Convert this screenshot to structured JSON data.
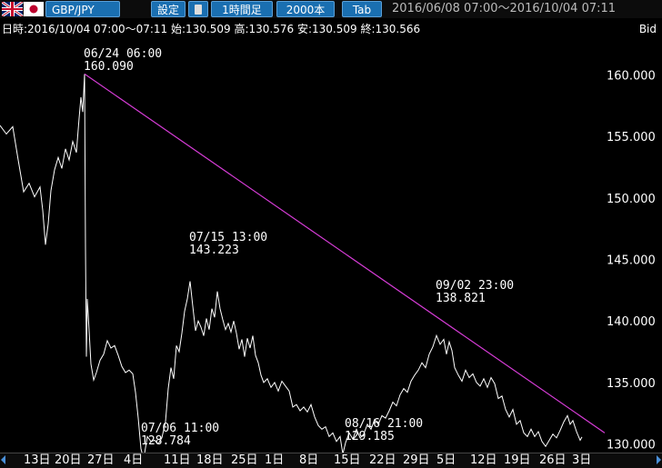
{
  "toolbar": {
    "pair": "GBP/JPY",
    "settings_label": "設定",
    "timeframe_label": "1時間足",
    "bars_label": "2000本",
    "tab_label": "Tab",
    "range_text": "2016/06/08 07:00～2016/10/04 07:11"
  },
  "info": {
    "ohlc_text": "日時:2016/10/04 07:00～07:11 始:130.509 高:130.576 安:130.509 終:130.566",
    "bid_label": "Bid"
  },
  "chart_data": {
    "type": "line",
    "ylim": [
      129.3,
      163.0
    ],
    "y_ticks": [
      "160.000",
      "155.000",
      "150.000",
      "145.000",
      "140.000",
      "135.000",
      "130.000"
    ],
    "x_ticks": [
      "13日",
      "20日",
      "27日",
      "4日",
      "11日",
      "18日",
      "25日",
      "1日",
      "8日",
      "15日",
      "22日",
      "29日",
      "5日",
      "12日",
      "19日",
      "26日",
      "3日"
    ],
    "series": [
      {
        "values": [
          [
            0,
            155.9
          ],
          [
            7,
            155.2
          ],
          [
            14,
            155.8
          ],
          [
            20,
            153.1
          ],
          [
            26,
            150.5
          ],
          [
            32,
            151.2
          ],
          [
            38,
            150.1
          ],
          [
            44,
            150.9
          ],
          [
            47,
            149.0
          ],
          [
            50,
            146.2
          ],
          [
            53,
            147.9
          ],
          [
            56,
            150.6
          ],
          [
            60,
            152.3
          ],
          [
            64,
            153.3
          ],
          [
            68,
            152.4
          ],
          [
            72,
            154.0
          ],
          [
            76,
            153.1
          ],
          [
            80,
            154.6
          ],
          [
            84,
            153.7
          ],
          [
            87,
            156.5
          ],
          [
            89,
            158.2
          ],
          [
            91,
            157.0
          ],
          [
            93,
            160.09
          ],
          [
            94,
            146.0
          ],
          [
            95,
            137.1
          ],
          [
            96,
            141.8
          ],
          [
            98,
            139.2
          ],
          [
            100,
            136.5
          ],
          [
            103,
            135.2
          ],
          [
            106,
            135.8
          ],
          [
            110,
            136.8
          ],
          [
            114,
            137.3
          ],
          [
            118,
            138.4
          ],
          [
            122,
            137.8
          ],
          [
            126,
            138.0
          ],
          [
            130,
            137.2
          ],
          [
            134,
            136.3
          ],
          [
            138,
            135.8
          ],
          [
            142,
            136.0
          ],
          [
            146,
            135.7
          ],
          [
            149,
            134.2
          ],
          [
            152,
            132.1
          ],
          [
            155,
            129.6
          ],
          [
            158,
            128.784
          ],
          [
            162,
            130.6
          ],
          [
            166,
            130.2
          ],
          [
            170,
            130.3
          ],
          [
            174,
            130.0
          ],
          [
            178,
            130.5
          ],
          [
            182,
            131.8
          ],
          [
            185,
            134.5
          ],
          [
            188,
            136.2
          ],
          [
            191,
            135.3
          ],
          [
            194,
            138.0
          ],
          [
            197,
            137.5
          ],
          [
            200,
            139.0
          ],
          [
            203,
            140.8
          ],
          [
            206,
            141.8
          ],
          [
            209,
            143.223
          ],
          [
            212,
            141.2
          ],
          [
            215,
            139.2
          ],
          [
            218,
            140.0
          ],
          [
            221,
            139.5
          ],
          [
            224,
            138.8
          ],
          [
            227,
            140.2
          ],
          [
            230,
            139.3
          ],
          [
            233,
            141.0
          ],
          [
            236,
            140.3
          ],
          [
            239,
            142.4
          ],
          [
            242,
            141.0
          ],
          [
            245,
            140.1
          ],
          [
            248,
            139.3
          ],
          [
            251,
            139.8
          ],
          [
            254,
            139.1
          ],
          [
            257,
            140.0
          ],
          [
            260,
            139.0
          ],
          [
            263,
            137.7
          ],
          [
            266,
            138.5
          ],
          [
            269,
            137.1
          ],
          [
            272,
            138.6
          ],
          [
            275,
            137.8
          ],
          [
            278,
            138.8
          ],
          [
            281,
            137.2
          ],
          [
            284,
            136.6
          ],
          [
            287,
            135.6
          ],
          [
            290,
            135.0
          ],
          [
            294,
            135.3
          ],
          [
            298,
            134.6
          ],
          [
            302,
            135.0
          ],
          [
            306,
            134.3
          ],
          [
            310,
            135.1
          ],
          [
            314,
            134.7
          ],
          [
            318,
            134.3
          ],
          [
            322,
            133.0
          ],
          [
            326,
            133.2
          ],
          [
            330,
            132.7
          ],
          [
            334,
            133.0
          ],
          [
            338,
            132.6
          ],
          [
            342,
            133.2
          ],
          [
            346,
            132.2
          ],
          [
            350,
            131.5
          ],
          [
            354,
            131.2
          ],
          [
            358,
            131.4
          ],
          [
            362,
            130.6
          ],
          [
            366,
            130.9
          ],
          [
            370,
            130.2
          ],
          [
            374,
            130.6
          ],
          [
            377,
            129.185
          ],
          [
            380,
            130.1
          ],
          [
            384,
            130.9
          ],
          [
            388,
            130.4
          ],
          [
            392,
            131.2
          ],
          [
            396,
            130.5
          ],
          [
            400,
            130.8
          ],
          [
            404,
            131.6
          ],
          [
            408,
            131.2
          ],
          [
            412,
            132.0
          ],
          [
            416,
            131.6
          ],
          [
            420,
            132.3
          ],
          [
            424,
            132.1
          ],
          [
            428,
            132.7
          ],
          [
            432,
            133.4
          ],
          [
            436,
            133.1
          ],
          [
            440,
            134.0
          ],
          [
            444,
            134.5
          ],
          [
            448,
            134.2
          ],
          [
            452,
            135.1
          ],
          [
            456,
            135.6
          ],
          [
            460,
            136.0
          ],
          [
            464,
            136.6
          ],
          [
            468,
            136.2
          ],
          [
            472,
            137.3
          ],
          [
            476,
            137.9
          ],
          [
            480,
            138.821
          ],
          [
            484,
            138.1
          ],
          [
            488,
            138.5
          ],
          [
            491,
            137.3
          ],
          [
            494,
            138.3
          ],
          [
            497,
            137.6
          ],
          [
            500,
            136.2
          ],
          [
            504,
            135.6
          ],
          [
            508,
            135.1
          ],
          [
            512,
            136.0
          ],
          [
            516,
            135.4
          ],
          [
            520,
            135.7
          ],
          [
            524,
            135.0
          ],
          [
            528,
            134.7
          ],
          [
            532,
            135.3
          ],
          [
            536,
            134.6
          ],
          [
            540,
            135.4
          ],
          [
            544,
            134.9
          ],
          [
            548,
            133.7
          ],
          [
            552,
            133.9
          ],
          [
            556,
            132.8
          ],
          [
            560,
            132.2
          ],
          [
            564,
            132.8
          ],
          [
            568,
            131.6
          ],
          [
            572,
            131.9
          ],
          [
            576,
            130.9
          ],
          [
            580,
            130.6
          ],
          [
            584,
            131.2
          ],
          [
            588,
            130.6
          ],
          [
            592,
            131.0
          ],
          [
            596,
            130.2
          ],
          [
            600,
            129.8
          ],
          [
            604,
            130.3
          ],
          [
            608,
            130.8
          ],
          [
            612,
            130.5
          ],
          [
            616,
            131.1
          ],
          [
            620,
            131.8
          ],
          [
            624,
            132.3
          ],
          [
            627,
            131.6
          ],
          [
            630,
            131.9
          ],
          [
            634,
            131.0
          ],
          [
            638,
            130.3
          ],
          [
            640,
            130.566
          ]
        ]
      }
    ],
    "trendline": {
      "from": [
        93,
        160.09
      ],
      "to": [
        665,
        130.9
      ],
      "color": "#d63cd6"
    },
    "annotations": [
      {
        "date": "06/24 06:00",
        "value": "160.090"
      },
      {
        "date": "07/06 11:00",
        "value": "128.784"
      },
      {
        "date": "07/15 13:00",
        "value": "143.223"
      },
      {
        "date": "08/16 21:00",
        "value": "129.185"
      },
      {
        "date": "09/02 23:00",
        "value": "138.821"
      }
    ],
    "colors": {
      "background": "#000000",
      "line": "#ffffff",
      "trendline": "#d63cd6",
      "toolbar_button": "#1a6fb1"
    }
  }
}
